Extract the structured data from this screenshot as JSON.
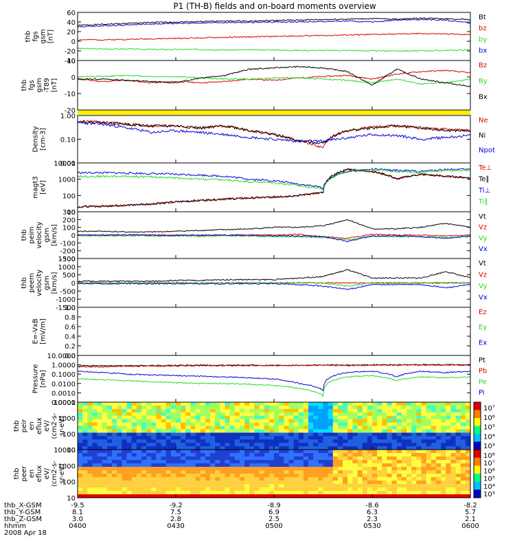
{
  "title": "P1 (TH-B) fields and on-board moments overview",
  "colors": {
    "black": "#000000",
    "red": "#dd0000",
    "green": "#22dd22",
    "blue": "#0000dd",
    "yellow": "#ffee00"
  },
  "chart_data": [
    {
      "type": "line",
      "ylabel": [
        "thb",
        "fgs",
        "gsm",
        "[nT]"
      ],
      "ylim": [
        -40,
        60
      ],
      "yticks": [
        "60",
        "40",
        "20",
        "0",
        "-20",
        "-40"
      ],
      "series": [
        {
          "name": "Bt",
          "color": "black",
          "values": [
            33,
            35,
            37,
            39,
            40,
            41,
            42,
            42,
            43,
            44,
            45,
            46,
            47,
            46,
            48,
            47,
            45
          ]
        },
        {
          "name": "bz",
          "color": "red",
          "values": [
            3,
            3,
            4,
            5,
            6,
            7,
            8,
            9,
            10,
            11,
            12,
            13,
            14,
            15,
            16,
            15,
            14
          ]
        },
        {
          "name": "by",
          "color": "green",
          "values": [
            -15,
            -16,
            -16,
            -17,
            -17,
            -17,
            -18,
            -18,
            -18,
            -19,
            -19,
            -19,
            -20,
            -20,
            -20,
            -19,
            -18
          ]
        },
        {
          "name": "bx",
          "color": "blue",
          "values": [
            30,
            32,
            34,
            36,
            37,
            38,
            39,
            39,
            40,
            40,
            41,
            42,
            40,
            44,
            45,
            44,
            38
          ]
        }
      ]
    },
    {
      "type": "line",
      "ylabel": [
        "thb",
        "fgs",
        "gsm",
        "-T89",
        "[nT]"
      ],
      "ylim": [
        -25,
        15
      ],
      "yticks": [
        "10",
        "0",
        "-10",
        "-20"
      ],
      "series": [
        {
          "name": "Bz",
          "color": "red",
          "values": [
            0,
            -2,
            -1,
            -3,
            -2,
            -3,
            -2,
            0,
            -1,
            1,
            2,
            3,
            0,
            4,
            6,
            7,
            5
          ]
        },
        {
          "name": "By",
          "color": "green",
          "values": [
            2,
            2,
            3,
            2,
            2,
            1,
            0,
            0,
            1,
            1,
            0,
            -1,
            -3,
            0,
            -4,
            -3,
            0
          ]
        },
        {
          "name": "Bx",
          "color": "black",
          "values": [
            0,
            0,
            -1,
            -2,
            -3,
            1,
            3,
            8,
            9,
            10,
            9,
            6,
            -5,
            8,
            0,
            -3,
            -6
          ]
        }
      ]
    },
    {
      "type": "line",
      "ylabel": [
        "Density",
        "[cm-3]"
      ],
      "ylim": [
        0.01,
        1.5
      ],
      "log": true,
      "yticks": [
        "1.00",
        "0.10",
        "0.01"
      ],
      "series": [
        {
          "name": "Ne",
          "color": "red",
          "values": [
            0.8,
            0.75,
            0.6,
            0.5,
            0.5,
            0.4,
            0.5,
            0.3,
            0.2,
            0.1,
            0.05,
            0.3,
            0.45,
            0.5,
            0.4,
            0.35,
            0.3
          ]
        },
        {
          "name": "Ni",
          "color": "black",
          "values": [
            0.8,
            0.7,
            0.6,
            0.5,
            0.5,
            0.4,
            0.5,
            0.3,
            0.2,
            0.1,
            0.08,
            0.3,
            0.4,
            0.5,
            0.4,
            0.3,
            0.3
          ]
        },
        {
          "name": "Npot",
          "color": "blue",
          "values": [
            0.7,
            0.6,
            0.4,
            0.25,
            0.3,
            0.25,
            0.2,
            0.15,
            0.12,
            0.1,
            0.1,
            0.14,
            0.2,
            0.18,
            0.12,
            0.15,
            0.18
          ]
        }
      ]
    },
    {
      "type": "line",
      "ylabel": [
        "magt3",
        "[eV]"
      ],
      "ylim": [
        10,
        10000
      ],
      "log": true,
      "yticks": [
        "10000",
        "1000",
        "100",
        "10"
      ],
      "series": [
        {
          "name": "Te⊥",
          "color": "red",
          "values": [
            20,
            22,
            25,
            30,
            40,
            50,
            60,
            70,
            80,
            100,
            150,
            4000,
            3000,
            1000,
            2000,
            1500,
            1200
          ]
        },
        {
          "name": "Te∥",
          "color": "black",
          "values": [
            20,
            22,
            25,
            30,
            40,
            50,
            60,
            70,
            80,
            100,
            150,
            4000,
            3000,
            1000,
            2000,
            1500,
            1200
          ]
        },
        {
          "name": "Ti⊥",
          "color": "blue",
          "values": [
            2500,
            2500,
            2400,
            2200,
            2000,
            1800,
            1500,
            1000,
            800,
            500,
            300,
            3000,
            4000,
            3500,
            3000,
            4000,
            4000
          ]
        },
        {
          "name": "Ti∥",
          "color": "green",
          "values": [
            1500,
            1500,
            1500,
            1400,
            1200,
            1000,
            900,
            700,
            600,
            400,
            250,
            3000,
            4000,
            3000,
            2500,
            3500,
            3500
          ]
        }
      ]
    },
    {
      "type": "line",
      "ylabel": [
        "thb",
        "peim",
        "velocity",
        "gsm",
        "[km/s]"
      ],
      "ylim": [
        -300,
        300
      ],
      "yticks": [
        "300",
        "200",
        "100",
        "0",
        "-100",
        "-200",
        "-300"
      ],
      "series": [
        {
          "name": "Vt",
          "color": "black",
          "values": [
            50,
            50,
            40,
            40,
            50,
            60,
            70,
            80,
            100,
            100,
            120,
            200,
            80,
            80,
            100,
            150,
            100
          ]
        },
        {
          "name": "Vz",
          "color": "red",
          "values": [
            0,
            0,
            0,
            5,
            0,
            -5,
            0,
            5,
            0,
            10,
            -20,
            -40,
            10,
            0,
            0,
            -10,
            0
          ]
        },
        {
          "name": "Vy",
          "color": "green",
          "values": [
            -10,
            -10,
            -10,
            -10,
            -10,
            -15,
            -10,
            -10,
            -20,
            -20,
            -30,
            -60,
            -20,
            -20,
            -20,
            -30,
            -20
          ]
        },
        {
          "name": "Vx",
          "color": "blue",
          "values": [
            0,
            0,
            5,
            0,
            -5,
            0,
            0,
            -5,
            -10,
            -10,
            -20,
            -80,
            -10,
            -10,
            -20,
            -40,
            -10
          ]
        }
      ]
    },
    {
      "type": "line",
      "ylabel": [
        "thb",
        "peem",
        "velocity",
        "gsm",
        "[km/s]"
      ],
      "ylim": [
        -1500,
        1500
      ],
      "yticks": [
        "1500",
        "1000",
        "500",
        "0",
        "-500",
        "-1000",
        "-1500"
      ],
      "series": [
        {
          "name": "Vt",
          "color": "black",
          "values": [
            100,
            100,
            100,
            100,
            150,
            150,
            200,
            200,
            200,
            300,
            400,
            800,
            300,
            300,
            300,
            700,
            300
          ]
        },
        {
          "name": "Vz",
          "color": "red",
          "values": [
            0,
            0,
            0,
            0,
            0,
            0,
            0,
            0,
            0,
            0,
            0,
            0,
            0,
            0,
            0,
            0,
            0
          ]
        },
        {
          "name": "Vy",
          "color": "green",
          "values": [
            0,
            0,
            0,
            0,
            0,
            0,
            0,
            0,
            0,
            0,
            0,
            -200,
            0,
            0,
            0,
            0,
            0
          ]
        },
        {
          "name": "Vx",
          "color": "blue",
          "values": [
            -50,
            -50,
            -50,
            -50,
            -50,
            -50,
            -50,
            -50,
            -50,
            -100,
            -200,
            -400,
            -100,
            -100,
            -100,
            -300,
            -100
          ]
        }
      ]
    },
    {
      "type": "line",
      "ylabel": [
        "E=-VxB",
        "[mV/m]"
      ],
      "ylim": [
        -1,
        1
      ],
      "yticks": [
        "1.0",
        "0.8",
        "0.6",
        "0.4",
        "0.2",
        "0.0"
      ],
      "series": [
        {
          "name": "Ez",
          "color": "red",
          "values": []
        },
        {
          "name": "Ey",
          "color": "green",
          "values": []
        },
        {
          "name": "Ex",
          "color": "blue",
          "values": []
        }
      ]
    },
    {
      "type": "line",
      "ylabel": [
        "Pressure",
        "[nPa]"
      ],
      "ylim": [
        0.0001,
        10
      ],
      "log": true,
      "yticks": [
        "10.0000",
        "1.0000",
        "0.1000",
        "0.0100",
        "0.0010",
        "0.0001"
      ],
      "series": [
        {
          "name": "Pt",
          "color": "black",
          "values": [
            0.8,
            0.8,
            0.8,
            0.85,
            0.85,
            0.9,
            0.9,
            0.9,
            0.9,
            0.9,
            0.95,
            0.9,
            1,
            1,
            1,
            1,
            1
          ]
        },
        {
          "name": "Pb",
          "color": "red",
          "values": [
            0.6,
            0.6,
            0.7,
            0.7,
            0.75,
            0.8,
            0.8,
            0.8,
            0.85,
            0.85,
            0.9,
            0.8,
            0.9,
            0.9,
            0.95,
            0.95,
            0.9
          ]
        },
        {
          "name": "Pe",
          "color": "green",
          "values": [
            0.03,
            0.025,
            0.02,
            0.015,
            0.012,
            0.01,
            0.01,
            0.008,
            0.006,
            0.003,
            0.0005,
            0.05,
            0.07,
            0.02,
            0.05,
            0.04,
            0.05
          ]
        },
        {
          "name": "Pi",
          "color": "blue",
          "values": [
            0.2,
            0.15,
            0.1,
            0.08,
            0.07,
            0.06,
            0.05,
            0.04,
            0.03,
            0.01,
            0.002,
            0.15,
            0.2,
            0.05,
            0.2,
            0.15,
            0.2
          ]
        }
      ]
    },
    {
      "type": "heatmap",
      "ylabel": [
        "thb",
        "peir",
        "en",
        "eflux",
        "eV/",
        "(cm2-s-",
        "sr-eV)"
      ],
      "yticks": [
        "10000",
        "1000",
        "100",
        "10"
      ],
      "colorbar": [
        "10⁷",
        "10⁶",
        "10⁵",
        "10⁴",
        "10³"
      ]
    },
    {
      "type": "heatmap",
      "ylabel": [
        "thb",
        "peer",
        "en",
        "eflux",
        "eV/",
        "(cm2-s-",
        "sr-eV)"
      ],
      "yticks": [
        "10000",
        "1000",
        "100",
        "10"
      ],
      "colorbar": [
        "10⁸",
        "10⁷",
        "10⁶",
        "10⁵",
        "10⁴",
        "10³"
      ]
    }
  ],
  "xaxis": {
    "rows": [
      {
        "label": "thb_X-GSM",
        "ticks": [
          "-9.5",
          "-9.2",
          "-8.9",
          "-8.6",
          "-8.2"
        ],
        "extra": "-8.6"
      },
      {
        "label": "thb_Y-GSM",
        "ticks": [
          "8.1",
          "7.5",
          "6.9",
          "6.3",
          "5.7"
        ]
      },
      {
        "label": "thb_Z-GSM",
        "ticks": [
          "3.0",
          "2.8",
          "2.5",
          "2.3",
          "2.1"
        ]
      },
      {
        "label": "hhmm",
        "ticks": [
          "0400",
          "0430",
          "0500",
          "0530",
          "0600"
        ]
      }
    ],
    "date": "2008 Apr 18"
  }
}
